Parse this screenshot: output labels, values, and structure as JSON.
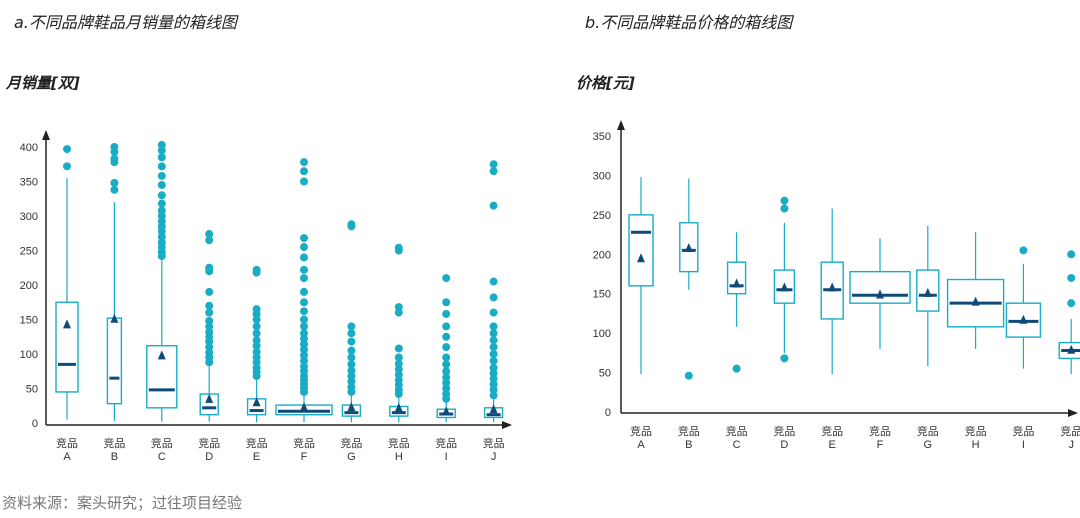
{
  "source": "资料来源：案头研究；过往项目经验",
  "colors": {
    "box": "#18adc4",
    "median": "#0f4a78",
    "axis": "#222222"
  },
  "chart_data": [
    {
      "type": "box",
      "title": "a.不同品牌鞋品月销量的箱线图",
      "ylabel": "月销量[双]",
      "ylim": [
        0,
        400
      ],
      "yticks": [
        0,
        50,
        100,
        150,
        200,
        250,
        300,
        350,
        400
      ],
      "categories": [
        "竞品A",
        "竞品B",
        "竞品C",
        "竞品D",
        "竞品E",
        "竞品F",
        "竞品G",
        "竞品H",
        "竞品I",
        "竞品J"
      ],
      "boxes": [
        {
          "q1": 45,
          "median": 85,
          "q3": 175,
          "mean": 143,
          "whisker_low": 5,
          "whisker_high": 355,
          "outliers": [
            372,
            397
          ]
        },
        {
          "q1": 28,
          "median": 65,
          "q3": 152,
          "mean": 151,
          "whisker_low": 3,
          "whisker_high": 320,
          "outliers": [
            338,
            348,
            378,
            383,
            393,
            400
          ]
        },
        {
          "q1": 22,
          "median": 48,
          "q3": 112,
          "mean": 98,
          "whisker_low": 2,
          "whisker_high": 240,
          "outliers": [
            242,
            248,
            255,
            262,
            270,
            278,
            285,
            292,
            300,
            308,
            318,
            330,
            345,
            358,
            372,
            385,
            395,
            403
          ]
        },
        {
          "q1": 12,
          "median": 22,
          "q3": 42,
          "mean": 35,
          "whisker_low": 2,
          "whisker_high": 82,
          "outliers": [
            88,
            95,
            102,
            110,
            118,
            125,
            132,
            140,
            148,
            160,
            170,
            190,
            220,
            225,
            265,
            274
          ]
        },
        {
          "q1": 12,
          "median": 18,
          "q3": 35,
          "mean": 30,
          "whisker_low": 1,
          "whisker_high": 62,
          "outliers": [
            68,
            74,
            80,
            88,
            95,
            103,
            112,
            120,
            130,
            140,
            150,
            158,
            165,
            218,
            222
          ]
        },
        {
          "q1": 12,
          "median": 17,
          "q3": 26,
          "mean": 23,
          "whisker_low": 1,
          "whisker_high": 40,
          "outliers": [
            45,
            50,
            56,
            62,
            68,
            75,
            82,
            90,
            98,
            106,
            114,
            122,
            130,
            140,
            150,
            162,
            175,
            190,
            210,
            222,
            240,
            255,
            268,
            350,
            365,
            378
          ]
        },
        {
          "q1": 10,
          "median": 15,
          "q3": 26,
          "mean": 23,
          "whisker_low": 1,
          "whisker_high": 40,
          "outliers": [
            45,
            52,
            60,
            68,
            76,
            85,
            95,
            105,
            118,
            130,
            140,
            285,
            288
          ]
        },
        {
          "q1": 10,
          "median": 15,
          "q3": 24,
          "mean": 22,
          "whisker_low": 1,
          "whisker_high": 36,
          "outliers": [
            42,
            48,
            55,
            62,
            70,
            78,
            86,
            95,
            108,
            160,
            168,
            250,
            254
          ]
        },
        {
          "q1": 8,
          "median": 13,
          "q3": 20,
          "mean": 17,
          "whisker_low": 1,
          "whisker_high": 30,
          "outliers": [
            35,
            42,
            50,
            58,
            66,
            75,
            85,
            95,
            110,
            125,
            140,
            158,
            175,
            210
          ]
        },
        {
          "q1": 8,
          "median": 12,
          "q3": 22,
          "mean": 20,
          "whisker_low": 1,
          "whisker_high": 34,
          "outliers": [
            40,
            48,
            56,
            64,
            72,
            80,
            90,
            100,
            110,
            120,
            130,
            140,
            160,
            182,
            205,
            315,
            365,
            375
          ]
        }
      ]
    },
    {
      "type": "box",
      "title": "b.不同品牌鞋品价格的箱线图",
      "ylabel": "价格[元]",
      "ylim": [
        0,
        350
      ],
      "yticks": [
        0,
        50,
        100,
        150,
        200,
        250,
        300,
        350
      ],
      "categories": [
        "竞品A",
        "竞品B",
        "竞品C",
        "竞品D",
        "竞品E",
        "竞品F",
        "竞品G",
        "竞品H",
        "竞品I",
        "竞品J"
      ],
      "boxes": [
        {
          "q1": 160,
          "median": 228,
          "q3": 250,
          "mean": 195,
          "whisker_low": 48,
          "whisker_high": 298,
          "outliers": []
        },
        {
          "q1": 178,
          "median": 205,
          "q3": 240,
          "mean": 208,
          "whisker_low": 155,
          "whisker_high": 296,
          "outliers": [
            46
          ]
        },
        {
          "q1": 150,
          "median": 160,
          "q3": 190,
          "mean": 163,
          "whisker_low": 108,
          "whisker_high": 228,
          "outliers": [
            55
          ]
        },
        {
          "q1": 138,
          "median": 155,
          "q3": 180,
          "mean": 158,
          "whisker_low": 75,
          "whisker_high": 240,
          "outliers": [
            68,
            258,
            268
          ]
        },
        {
          "q1": 118,
          "median": 155,
          "q3": 190,
          "mean": 158,
          "whisker_low": 48,
          "whisker_high": 258,
          "outliers": []
        },
        {
          "q1": 138,
          "median": 148,
          "q3": 178,
          "mean": 149,
          "whisker_low": 80,
          "whisker_high": 220,
          "outliers": []
        },
        {
          "q1": 128,
          "median": 148,
          "q3": 180,
          "mean": 151,
          "whisker_low": 58,
          "whisker_high": 236,
          "outliers": []
        },
        {
          "q1": 108,
          "median": 138,
          "q3": 168,
          "mean": 140,
          "whisker_low": 80,
          "whisker_high": 228,
          "outliers": []
        },
        {
          "q1": 95,
          "median": 115,
          "q3": 138,
          "mean": 117,
          "whisker_low": 55,
          "whisker_high": 188,
          "outliers": [
            205
          ]
        },
        {
          "q1": 68,
          "median": 78,
          "q3": 88,
          "mean": 79,
          "whisker_low": 48,
          "whisker_high": 118,
          "outliers": [
            138,
            170,
            200
          ]
        }
      ]
    }
  ]
}
